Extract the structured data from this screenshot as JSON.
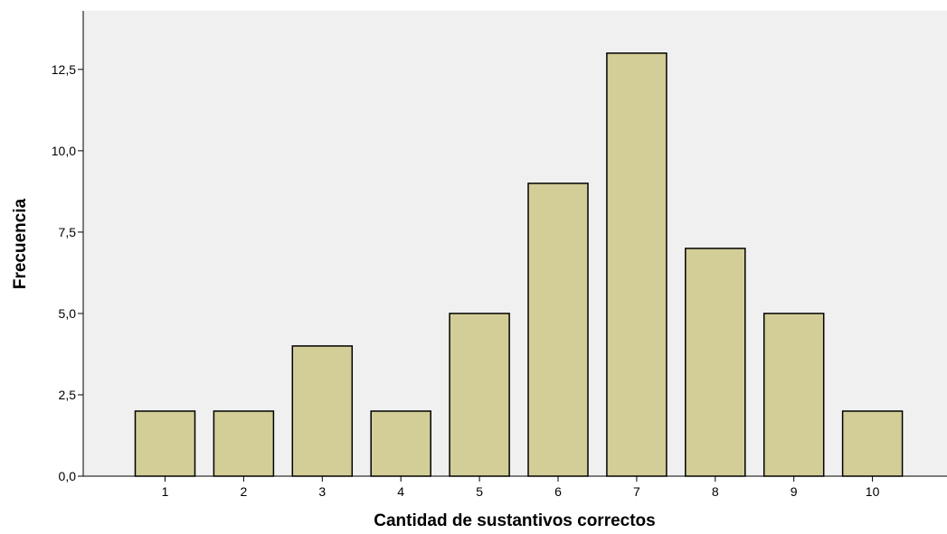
{
  "chart_data": {
    "type": "bar",
    "title": "",
    "xlabel": "Cantidad de sustantivos correctos",
    "ylabel": "Frecuencia",
    "categories": [
      "1",
      "2",
      "3",
      "4",
      "5",
      "6",
      "7",
      "8",
      "9",
      "10"
    ],
    "values": [
      2,
      2,
      4,
      2,
      5,
      9,
      13,
      7,
      5,
      2
    ],
    "ylim": [
      0,
      14.3
    ],
    "yticks": [
      0,
      2.5,
      5,
      7.5,
      10,
      12.5
    ],
    "ytick_labels": [
      "0,0",
      "2,5",
      "5,0",
      "7,5",
      "10,0",
      "12,5"
    ],
    "grid": false,
    "colors": {
      "plot_background": "#f0f0f0",
      "bar_fill": "#d3ce97",
      "bar_stroke": "#000000"
    }
  }
}
